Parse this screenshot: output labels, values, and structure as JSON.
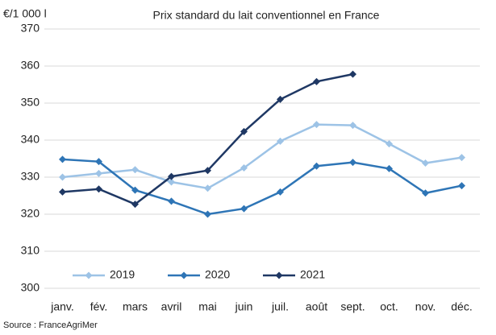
{
  "chart_data": {
    "type": "line",
    "title": "Prix standard du lait conventionnel en France",
    "ylabel": "€/1 000 l",
    "source": "Source : FranceAgriMer",
    "categories": [
      "janv.",
      "fév.",
      "mars",
      "avril",
      "mai",
      "juin",
      "juil.",
      "août",
      "sept.",
      "oct.",
      "nov.",
      "déc."
    ],
    "series": [
      {
        "name": "2019",
        "color": "#9dc3e6",
        "values": [
          330,
          331,
          332,
          328.7,
          327,
          332.5,
          339.7,
          344.2,
          344,
          339,
          333.8,
          335.3
        ]
      },
      {
        "name": "2020",
        "color": "#2e75b6",
        "values": [
          334.8,
          334.2,
          326.5,
          323.5,
          320,
          321.5,
          326,
          333,
          334,
          332.3,
          325.7,
          327.7
        ]
      },
      {
        "name": "2021",
        "color": "#1f3864",
        "values": [
          326,
          326.8,
          322.7,
          330.2,
          331.8,
          342.3,
          351,
          355.8,
          357.8,
          null,
          null,
          null
        ]
      }
    ],
    "ylim": [
      300,
      370
    ],
    "yticks": [
      300,
      310,
      320,
      330,
      340,
      350,
      360,
      370
    ],
    "grid": true,
    "legend": "bottom-left"
  }
}
